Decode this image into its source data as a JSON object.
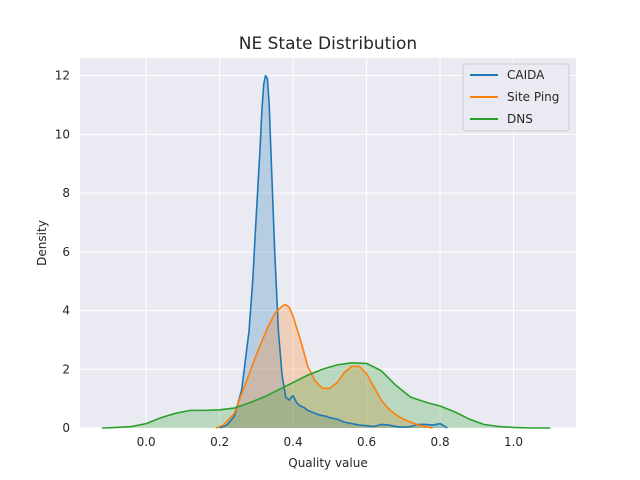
{
  "chart_data": {
    "type": "area",
    "title": "NE State Distribution",
    "xlabel": "Quality value",
    "ylabel": "Density",
    "xlim": [
      -0.18,
      1.17
    ],
    "ylim": [
      0,
      12.6
    ],
    "xticks": [
      0.0,
      0.2,
      0.4,
      0.6,
      0.8,
      1.0
    ],
    "xtick_labels": [
      "0.0",
      "0.2",
      "0.4",
      "0.6",
      "0.8",
      "1.0"
    ],
    "yticks": [
      0,
      2,
      4,
      6,
      8,
      10,
      12
    ],
    "ytick_labels": [
      "0",
      "2",
      "4",
      "6",
      "8",
      "10",
      "12"
    ],
    "grid": true,
    "legend_position": "top-right",
    "background_color": "#eaeaf2",
    "series": [
      {
        "name": "CAIDA",
        "color": "#1f77b4",
        "x": [
          0.2,
          0.22,
          0.24,
          0.26,
          0.28,
          0.29,
          0.3,
          0.31,
          0.315,
          0.32,
          0.325,
          0.33,
          0.335,
          0.34,
          0.35,
          0.36,
          0.37,
          0.38,
          0.39,
          0.395,
          0.4,
          0.41,
          0.42,
          0.43,
          0.44,
          0.45,
          0.46,
          0.47,
          0.48,
          0.49,
          0.5,
          0.52,
          0.54,
          0.56,
          0.58,
          0.6,
          0.62,
          0.64,
          0.66,
          0.68,
          0.7,
          0.72,
          0.74,
          0.76,
          0.78,
          0.8,
          0.81,
          0.82
        ],
        "y": [
          0.0,
          0.1,
          0.4,
          1.3,
          3.3,
          5.0,
          7.3,
          9.5,
          10.8,
          11.7,
          12.0,
          11.9,
          11.0,
          9.3,
          6.0,
          3.3,
          1.8,
          1.05,
          0.95,
          1.05,
          1.1,
          0.85,
          0.75,
          0.7,
          0.6,
          0.55,
          0.5,
          0.45,
          0.42,
          0.4,
          0.35,
          0.3,
          0.2,
          0.15,
          0.1,
          0.08,
          0.05,
          0.12,
          0.1,
          0.05,
          0.03,
          0.05,
          0.12,
          0.12,
          0.1,
          0.15,
          0.08,
          0.0
        ]
      },
      {
        "name": "Site Ping",
        "color": "#ff7f0e",
        "x": [
          0.19,
          0.21,
          0.24,
          0.27,
          0.3,
          0.33,
          0.35,
          0.37,
          0.38,
          0.39,
          0.4,
          0.42,
          0.44,
          0.46,
          0.48,
          0.5,
          0.52,
          0.54,
          0.56,
          0.58,
          0.6,
          0.62,
          0.64,
          0.66,
          0.68,
          0.7,
          0.72,
          0.74,
          0.76,
          0.78
        ],
        "y": [
          0.0,
          0.1,
          0.5,
          1.5,
          2.5,
          3.4,
          3.9,
          4.15,
          4.2,
          4.1,
          3.8,
          3.0,
          2.1,
          1.6,
          1.35,
          1.35,
          1.55,
          1.9,
          2.1,
          2.1,
          1.85,
          1.4,
          0.95,
          0.65,
          0.45,
          0.3,
          0.2,
          0.1,
          0.05,
          0.0
        ]
      },
      {
        "name": "DNS",
        "color": "#2ca02c",
        "x": [
          -0.12,
          -0.08,
          -0.04,
          0.0,
          0.04,
          0.08,
          0.12,
          0.16,
          0.2,
          0.24,
          0.28,
          0.32,
          0.36,
          0.4,
          0.44,
          0.48,
          0.52,
          0.56,
          0.6,
          0.64,
          0.68,
          0.72,
          0.76,
          0.8,
          0.84,
          0.88,
          0.92,
          0.96,
          1.0,
          1.05,
          1.1
        ],
        "y": [
          0.0,
          0.02,
          0.05,
          0.15,
          0.35,
          0.5,
          0.6,
          0.6,
          0.62,
          0.68,
          0.85,
          1.05,
          1.3,
          1.55,
          1.8,
          2.0,
          2.15,
          2.22,
          2.2,
          1.95,
          1.45,
          1.05,
          0.88,
          0.75,
          0.55,
          0.3,
          0.12,
          0.05,
          0.02,
          0.0,
          0.0
        ]
      }
    ]
  }
}
